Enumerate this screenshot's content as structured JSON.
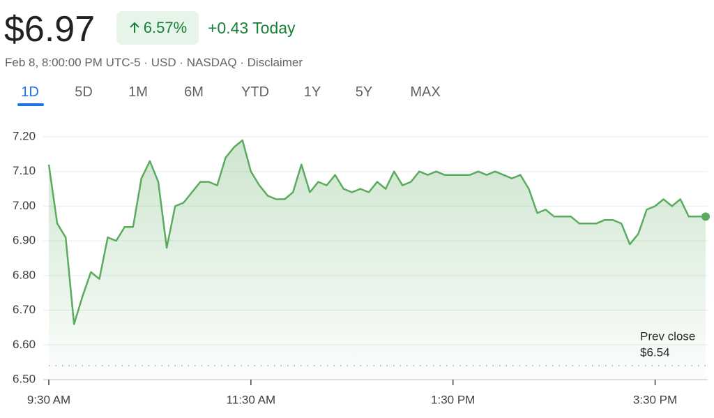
{
  "quote": {
    "price": "$6.97",
    "change_percent": "6.57%",
    "change_today": "+0.43 Today",
    "info": "Feb 8, 8:00:00 PM UTC-5 · USD · NASDAQ · Disclaimer"
  },
  "tabs": [
    "1D",
    "5D",
    "1M",
    "6M",
    "YTD",
    "1Y",
    "5Y",
    "MAX"
  ],
  "chart_data": {
    "type": "line",
    "color": "#5bab5e",
    "x": [
      "9:30 AM",
      "9:35 AM",
      "9:40 AM",
      "9:45 AM",
      "9:50 AM",
      "9:55 AM",
      "10:00 AM",
      "10:05 AM",
      "10:10 AM",
      "10:15 AM",
      "10:20 AM",
      "10:25 AM",
      "10:30 AM",
      "10:35 AM",
      "10:40 AM",
      "10:45 AM",
      "10:50 AM",
      "10:55 AM",
      "11:00 AM",
      "11:05 AM",
      "11:10 AM",
      "11:15 AM",
      "11:20 AM",
      "11:25 AM",
      "11:30 AM",
      "11:35 AM",
      "11:40 AM",
      "11:45 AM",
      "11:50 AM",
      "11:55 AM",
      "12:00 PM",
      "12:05 PM",
      "12:10 PM",
      "12:15 PM",
      "12:20 PM",
      "12:25 PM",
      "12:30 PM",
      "12:35 PM",
      "12:40 PM",
      "12:45 PM",
      "12:50 PM",
      "12:55 PM",
      "1:00 PM",
      "1:05 PM",
      "1:10 PM",
      "1:15 PM",
      "1:20 PM",
      "1:25 PM",
      "1:30 PM",
      "1:35 PM",
      "1:40 PM",
      "1:45 PM",
      "1:50 PM",
      "1:55 PM",
      "2:00 PM",
      "2:05 PM",
      "2:10 PM",
      "2:15 PM",
      "2:20 PM",
      "2:25 PM",
      "2:30 PM",
      "2:35 PM",
      "2:40 PM",
      "2:45 PM",
      "2:50 PM",
      "2:55 PM",
      "3:00 PM",
      "3:05 PM",
      "3:10 PM",
      "3:15 PM",
      "3:20 PM",
      "3:25 PM",
      "3:30 PM",
      "3:35 PM",
      "3:40 PM",
      "3:45 PM",
      "3:50 PM",
      "3:55 PM",
      "4:00 PM"
    ],
    "values": [
      7.12,
      6.95,
      6.91,
      6.66,
      6.74,
      6.81,
      6.79,
      6.91,
      6.9,
      6.94,
      6.94,
      7.08,
      7.13,
      7.07,
      6.88,
      7.0,
      7.01,
      7.04,
      7.07,
      7.07,
      7.06,
      7.14,
      7.17,
      7.19,
      7.1,
      7.06,
      7.03,
      7.02,
      7.02,
      7.04,
      7.12,
      7.04,
      7.07,
      7.06,
      7.09,
      7.05,
      7.04,
      7.05,
      7.04,
      7.07,
      7.05,
      7.1,
      7.06,
      7.07,
      7.1,
      7.09,
      7.1,
      7.09,
      7.09,
      7.09,
      7.09,
      7.1,
      7.09,
      7.1,
      7.09,
      7.08,
      7.09,
      7.05,
      6.98,
      6.99,
      6.97,
      6.97,
      6.97,
      6.95,
      6.95,
      6.95,
      6.96,
      6.96,
      6.95,
      6.89,
      6.92,
      6.99,
      7.0,
      7.02,
      7.0,
      7.02,
      6.97,
      6.97,
      6.97
    ],
    "xlim": [
      "9:30 AM",
      "4:00 PM"
    ],
    "xticks": [
      "9:30 AM",
      "11:30 AM",
      "1:30 PM",
      "3:30 PM"
    ],
    "ylim": [
      6.5,
      7.2
    ],
    "yticks": [
      {
        "value": 6.5,
        "label": "6.50"
      },
      {
        "value": 6.6,
        "label": "6.60"
      },
      {
        "value": 6.7,
        "label": "6.70"
      },
      {
        "value": 6.8,
        "label": "6.80"
      },
      {
        "value": 6.9,
        "label": "6.90"
      },
      {
        "value": 7.0,
        "label": "7.00"
      },
      {
        "value": 7.1,
        "label": "7.10"
      },
      {
        "value": 7.2,
        "label": "7.20"
      }
    ],
    "grid": true,
    "prev_close": {
      "label": "Prev close",
      "value": 6.54,
      "value_label": "$6.54"
    }
  }
}
